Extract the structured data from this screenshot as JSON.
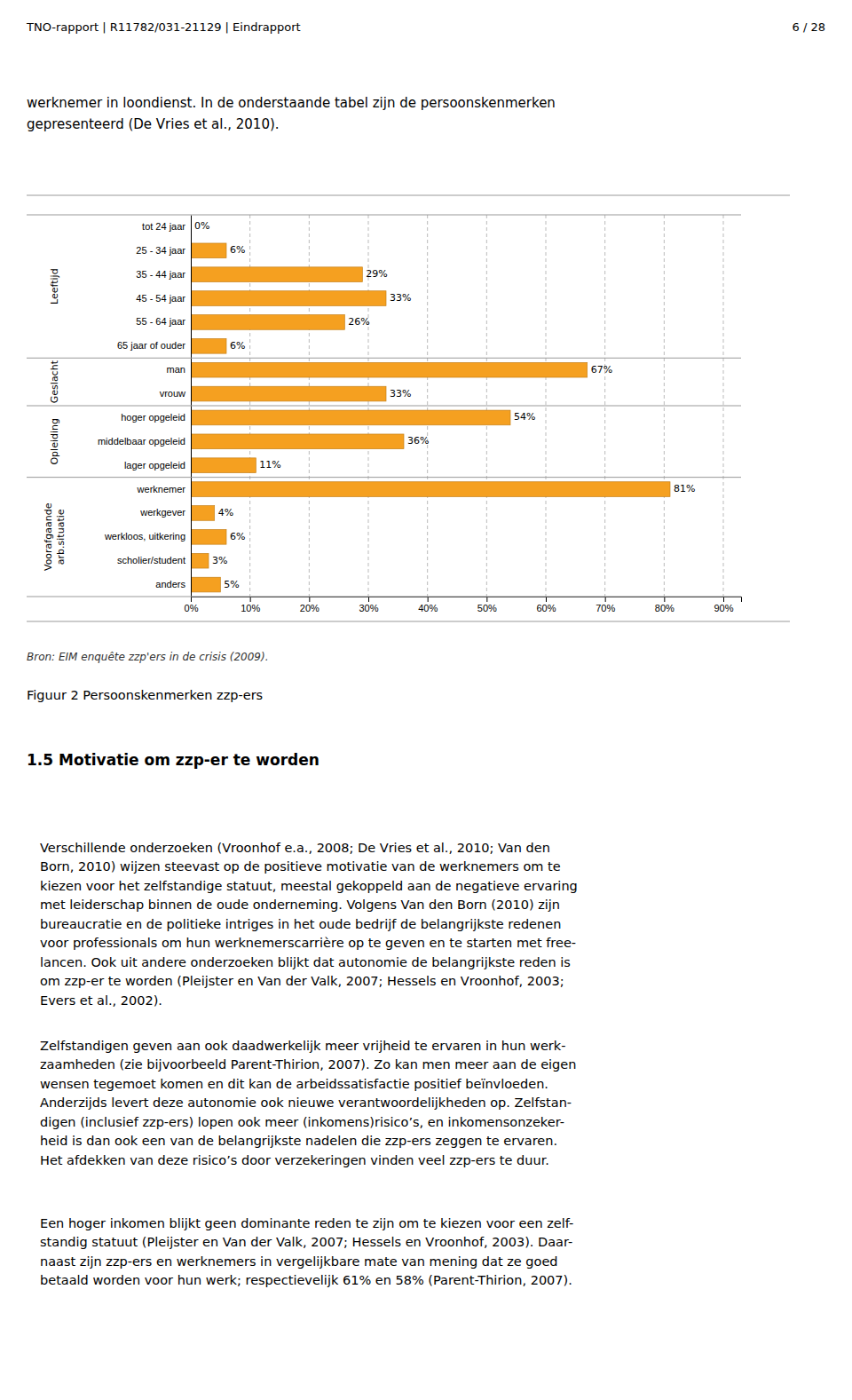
{
  "header_left": "TNO-rapport | R11782/031-21129 | Eindrapport",
  "header_right": "6 / 28",
  "intro_lines": [
    "werknemer in loondienst. In de onderstaande tabel zijn de persoonskenmerken",
    "gepresenteerd (De Vries et al., 2010)."
  ],
  "chart_data": {
    "type": "bar",
    "orientation": "horizontal",
    "categories": [
      "tot 24 jaar",
      "25 - 34 jaar",
      "35 - 44 jaar",
      "45 - 54 jaar",
      "55 - 64 jaar",
      "65 jaar of ouder",
      "man",
      "vrouw",
      "hoger opgeleid",
      "middelbaar opgeleid",
      "lager opgeleid",
      "werknemer",
      "werkgever",
      "werkloos, uitkering",
      "scholier/student",
      "anders"
    ],
    "values": [
      0,
      6,
      29,
      33,
      26,
      6,
      67,
      33,
      54,
      36,
      11,
      81,
      4,
      6,
      3,
      5
    ],
    "value_labels": [
      "0%",
      "6%",
      "29%",
      "33%",
      "26%",
      "6%",
      "67%",
      "33%",
      "54%",
      "36%",
      "11%",
      "81%",
      "4%",
      "6%",
      "3%",
      "5%"
    ],
    "data_labels": true,
    "groups": [
      {
        "name": "Leeftijd",
        "size": 6
      },
      {
        "name": "Geslacht",
        "size": 2
      },
      {
        "name": "Opleiding",
        "size": 3
      },
      {
        "name": "Voorafgaande\narb.situatie",
        "size": 5
      }
    ],
    "color": "#F5A020",
    "xlim": [
      0,
      93
    ],
    "xticks": [
      {
        "value": 0,
        "label": "0%"
      },
      {
        "value": 10,
        "label": "10%"
      },
      {
        "value": 20,
        "label": "20%"
      },
      {
        "value": 30,
        "label": "30%"
      },
      {
        "value": 40,
        "label": "40%"
      },
      {
        "value": 50,
        "label": "50%"
      },
      {
        "value": 60,
        "label": "60%"
      },
      {
        "value": 70,
        "label": "70%"
      },
      {
        "value": 80,
        "label": "80%"
      },
      {
        "value": 90,
        "label": "90%"
      }
    ],
    "grid": true
  },
  "source_text": "Bron: EIM enquête zzp'ers in de crisis (2009).",
  "figure_caption": "Figuur 2 Persoonskenmerken zzp-ers",
  "section_title": "1.5 Motivatie om zzp-er te worden",
  "paragraphs": [
    [
      "Verschillende onderzoeken (Vroonhof e.a., 2008; De Vries et al., 2010; Van den",
      "Born, 2010) wijzen steevast op de positieve motivatie van de werknemers om te",
      "kiezen voor het zelfstandige statuut, meestal gekoppeld aan de negatieve ervaring",
      "met leiderschap binnen de oude onderneming. Volgens Van den Born (2010) zijn",
      "bureaucratie en de politieke intriges in het oude bedrijf de belangrijkste redenen",
      "voor professionals om hun werknemerscarrière op te geven en te starten met free-",
      "lancen. Ook uit andere onderzoeken blijkt dat autonomie de belangrijkste reden is",
      "om zzp-er te worden (Pleijster en Van der Valk, 2007; Hessels en Vroonhof, 2003;",
      "Evers et al., 2002)."
    ],
    [
      "Zelfstandigen geven aan ook daadwerkelijk meer vrijheid te ervaren in hun werk-",
      "zaamheden (zie bijvoorbeeld Parent-Thirion, 2007). Zo kan men meer aan de eigen",
      "wensen tegemoet komen en dit kan de arbeidssatisfactie positief beïnvloeden.",
      "Anderzijds levert deze autonomie ook nieuwe verantwoordelijkheden op. Zelfstan-",
      "digen (inclusief zzp-ers) lopen ook meer (inkomens)risico’s, en inkomensonzeker-",
      "heid is dan ook een van de belangrijkste nadelen die zzp-ers zeggen te ervaren.",
      "Het afdekken van deze risico’s door verzekeringen vinden veel zzp-ers te duur."
    ],
    [
      "Een hoger inkomen blijkt geen dominante reden te zijn om te kiezen voor een zelf-",
      "standig statuut (Pleijster en Van der Valk, 2007; Hessels en Vroonhof, 2003). Daar-",
      "naast zijn zzp-ers en werknemers in vergelijkbare mate van mening dat ze goed",
      "betaald worden voor hun werk; respectievelijk 61% en 58% (Parent-Thirion, 2007)."
    ]
  ]
}
